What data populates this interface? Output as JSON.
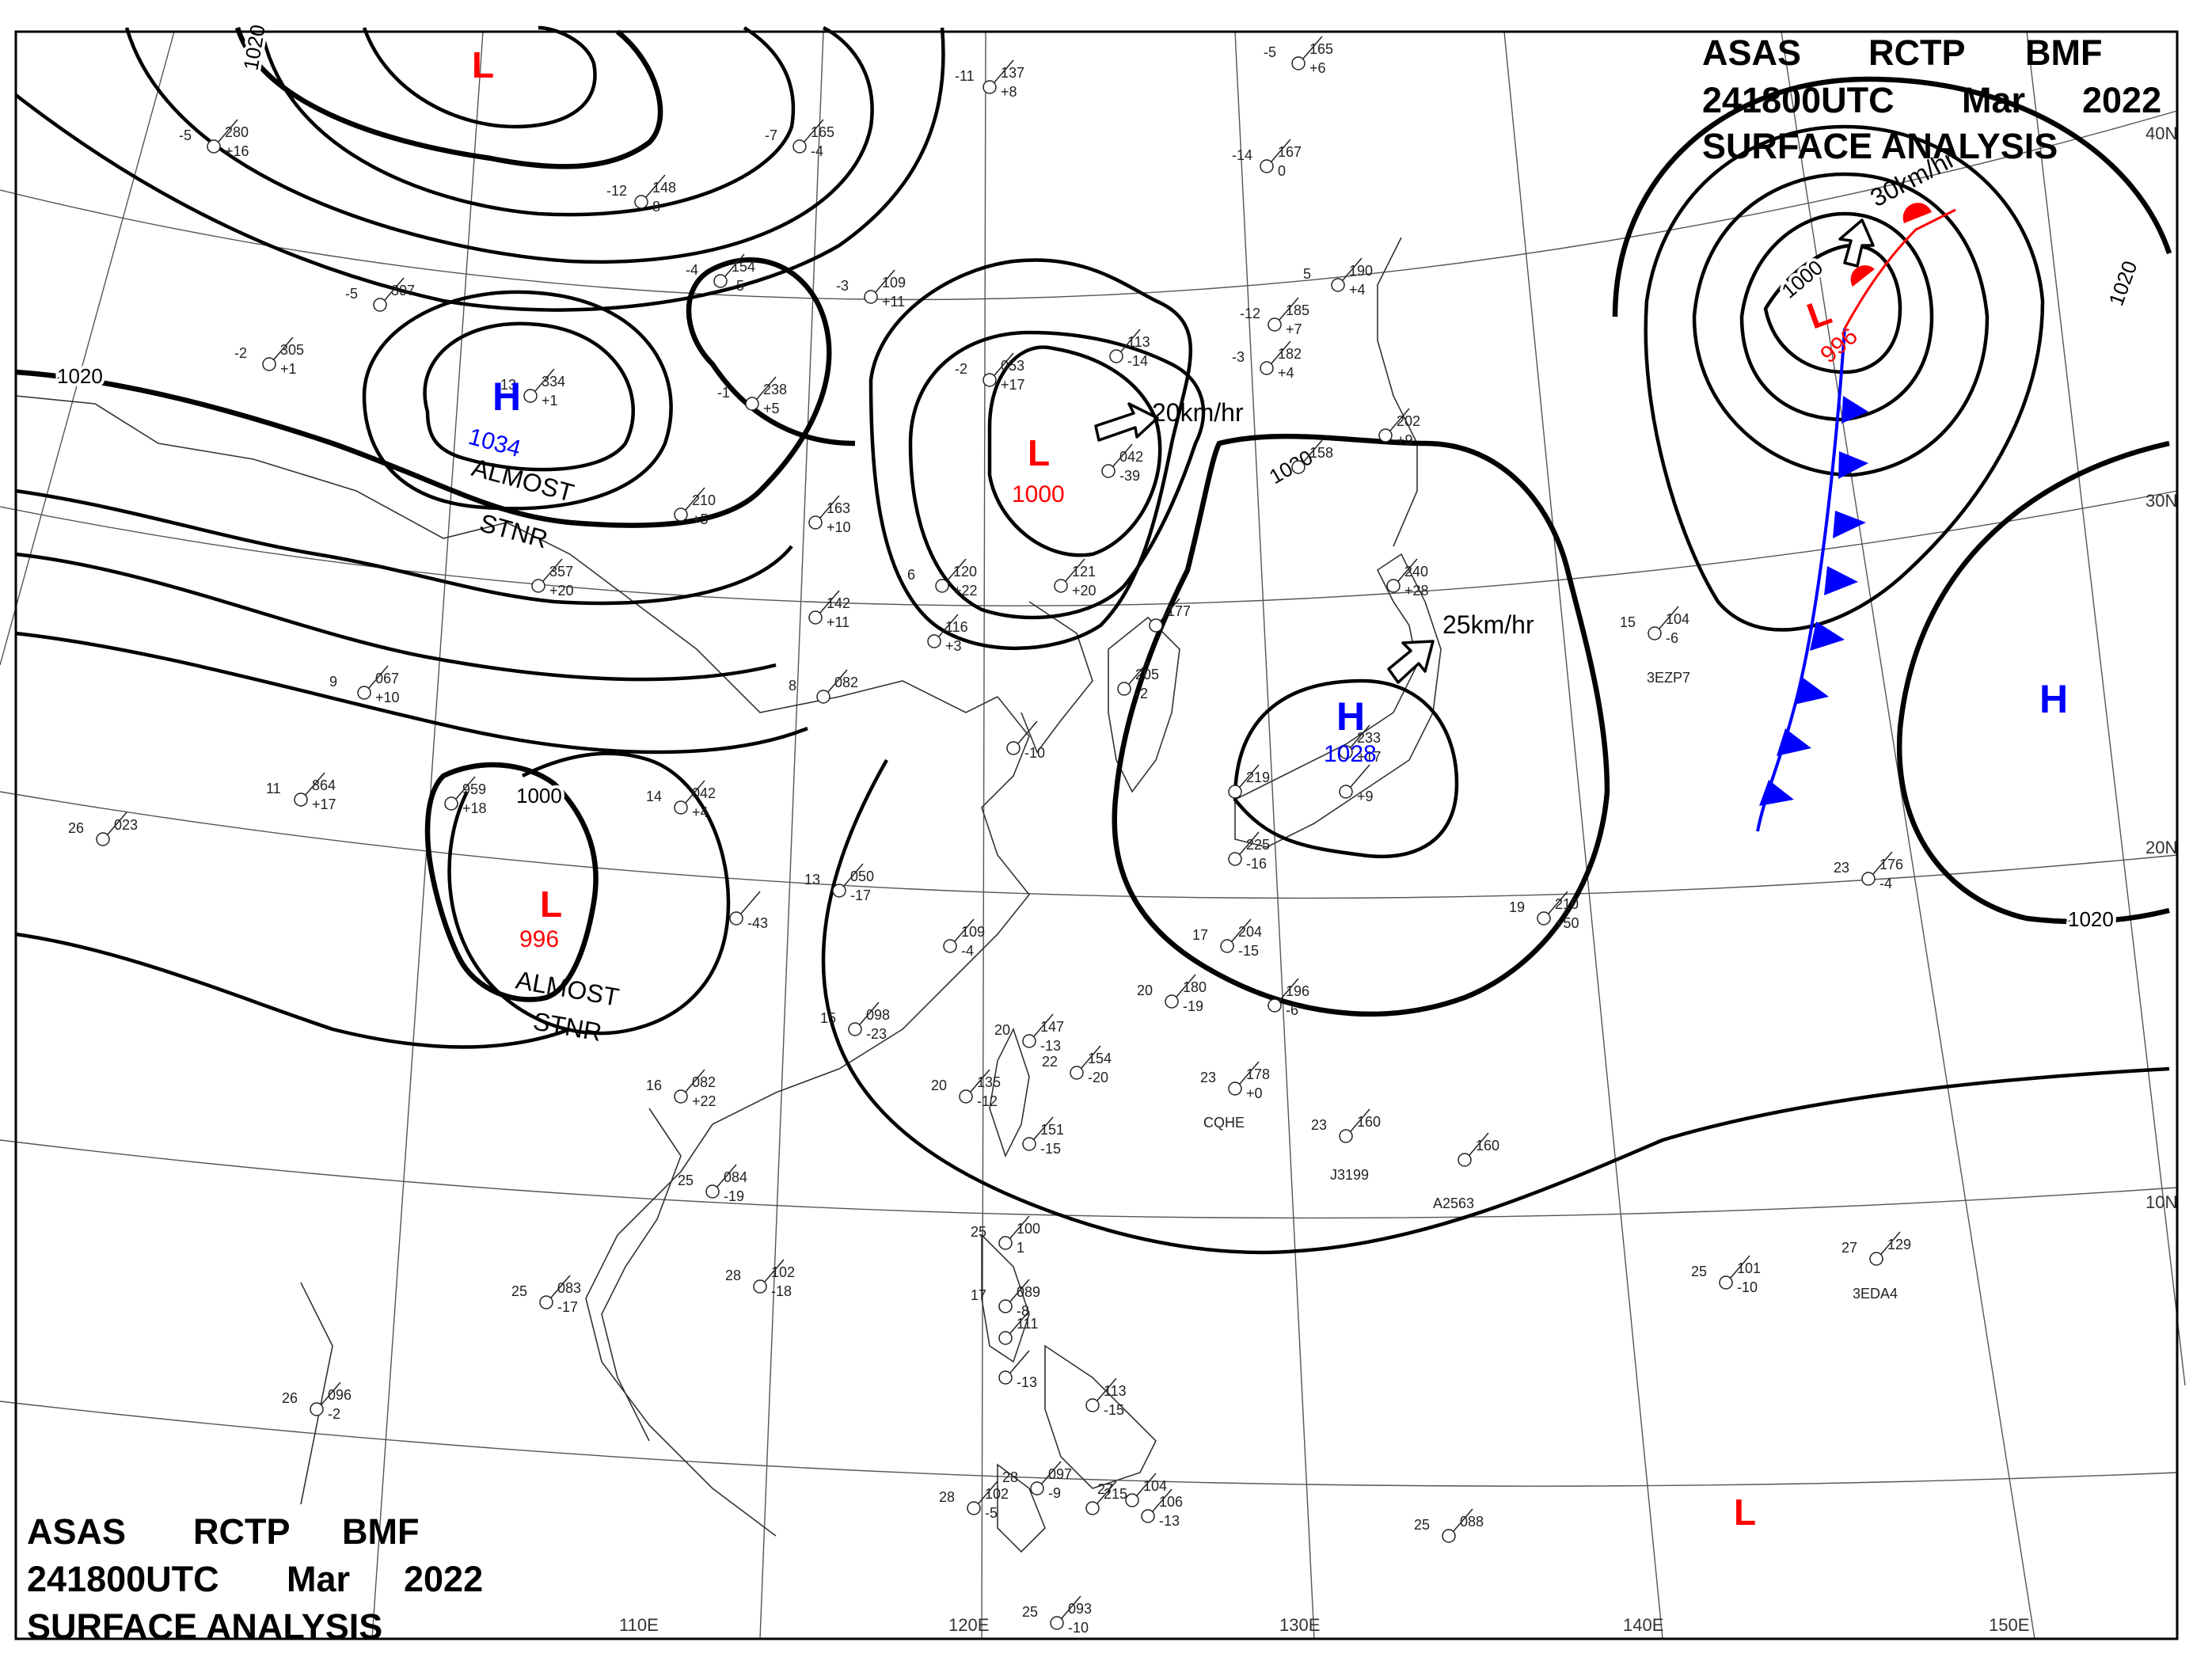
{
  "header_top": {
    "line1": [
      "ASAS",
      "RCTP",
      "BMF"
    ],
    "line2": [
      "241800UTC",
      "Mar",
      "2022"
    ],
    "line3": "SURFACE  ANALYSIS"
  },
  "header_bottom": {
    "line1": [
      "ASAS",
      "RCTP",
      "BMF"
    ],
    "line2": [
      "241800UTC",
      "Mar",
      "2022"
    ],
    "line3": "SURFACE  ANALYSIS"
  },
  "latitude_labels": [
    "40N",
    "30N",
    "20N",
    "10N"
  ],
  "longitude_labels": [
    "110E",
    "120E",
    "130E",
    "140E",
    "150E"
  ],
  "isobar_labels": [
    "1020",
    "1020",
    "1000",
    "1020",
    "1000",
    "1020",
    "1020"
  ],
  "pressure_centers": [
    {
      "symbol": "H",
      "value": "1034",
      "note": [
        "ALMOST",
        "STNR"
      ],
      "color": "#0000ff"
    },
    {
      "symbol": "L",
      "value": "1000",
      "note": [],
      "color": "#ff0000"
    },
    {
      "symbol": "L",
      "value": "996",
      "note": [
        "ALMOST",
        "STNR"
      ],
      "color": "#ff0000"
    },
    {
      "symbol": "H",
      "value": "1028",
      "note": [],
      "color": "#0000ff"
    },
    {
      "symbol": "L",
      "value": "996",
      "note": [],
      "color": "#ff0000"
    },
    {
      "symbol": "H",
      "value": "",
      "note": [],
      "color": "#0000ff"
    },
    {
      "symbol": "L",
      "value": "",
      "note": [],
      "color": "#ff0000"
    },
    {
      "symbol": "L",
      "value": "",
      "note": [],
      "color": "#ff0000"
    }
  ],
  "movement_labels": [
    "20km/hr",
    "25km/hr",
    "30km/hr"
  ],
  "fronts": [
    {
      "type": "cold",
      "color": "#0000ff"
    },
    {
      "type": "warm",
      "color": "#ff0000"
    }
  ],
  "stations": [
    {
      "t": "-11",
      "p": "137",
      "d": "+8"
    },
    {
      "t": "-5",
      "p": "165",
      "d": "+6"
    },
    {
      "t": "-5",
      "p": "280",
      "d": "+16"
    },
    {
      "t": "-7",
      "p": "165",
      "d": "-4"
    },
    {
      "t": "-14",
      "p": "167",
      "d": "0"
    },
    {
      "t": "-12",
      "p": "148",
      "d": "8"
    },
    {
      "t": "-4",
      "p": "154",
      "d": "-5"
    },
    {
      "t": "-3",
      "p": "109",
      "d": "+11"
    },
    {
      "t": "-5",
      "p": "307",
      "d": ""
    },
    {
      "t": "-12",
      "p": "185",
      "d": "+7"
    },
    {
      "t": "5",
      "p": "190",
      "d": "+4"
    },
    {
      "t": "-2",
      "p": "305",
      "d": "+1"
    },
    {
      "t": "-13",
      "p": "334",
      "d": "+1"
    },
    {
      "t": "-1",
      "p": "238",
      "d": "+5"
    },
    {
      "t": "-2",
      "p": "053",
      "d": "+17"
    },
    {
      "t": "",
      "p": "113",
      "d": "-14"
    },
    {
      "t": "-3",
      "p": "182",
      "d": "+4"
    },
    {
      "t": "",
      "p": "202",
      "d": "+9"
    },
    {
      "t": "",
      "p": "158",
      "d": ""
    },
    {
      "t": "",
      "p": "042",
      "d": "-39"
    },
    {
      "t": "",
      "p": "210",
      "d": "+5"
    },
    {
      "t": "",
      "p": "163",
      "d": "+10"
    },
    {
      "t": "",
      "p": "357",
      "d": "+20"
    },
    {
      "t": "",
      "p": "142",
      "d": "+11"
    },
    {
      "t": "6",
      "p": "120",
      "d": "+22"
    },
    {
      "t": "",
      "p": "121",
      "d": "+20"
    },
    {
      "t": "",
      "p": "116",
      "d": "+3"
    },
    {
      "t": "",
      "p": "177",
      "d": ""
    },
    {
      "t": "",
      "p": "240",
      "d": "+28"
    },
    {
      "t": "",
      "p": "205",
      "d": "-2"
    },
    {
      "t": "15",
      "p": "104",
      "d": "-6"
    },
    {
      "t": "9",
      "p": "067",
      "d": "+10"
    },
    {
      "t": "8",
      "p": "082",
      "d": ""
    },
    {
      "t": "",
      "p": "",
      "d": "-10"
    },
    {
      "t": "",
      "p": "233",
      "d": "+17"
    },
    {
      "t": "11",
      "p": "864",
      "d": "+17"
    },
    {
      "t": "",
      "p": "959",
      "d": "+18"
    },
    {
      "t": "14",
      "p": "042",
      "d": "+4"
    },
    {
      "t": "",
      "p": "219",
      "d": ""
    },
    {
      "t": "",
      "p": "",
      "d": "+9"
    },
    {
      "t": "26",
      "p": "023",
      "d": ""
    },
    {
      "t": "13",
      "p": "050",
      "d": "-17"
    },
    {
      "t": "",
      "p": "225",
      "d": "-16"
    },
    {
      "t": "",
      "p": "",
      "d": "-43"
    },
    {
      "t": "19",
      "p": "210",
      "d": "+50"
    },
    {
      "t": "23",
      "p": "176",
      "d": "-4"
    },
    {
      "t": "",
      "p": "109",
      "d": "-4"
    },
    {
      "t": "17",
      "p": "204",
      "d": "-15"
    },
    {
      "t": "15",
      "p": "098",
      "d": "-23"
    },
    {
      "t": "20",
      "p": "180",
      "d": "-19"
    },
    {
      "t": "",
      "p": "196",
      "d": "-6"
    },
    {
      "t": "20",
      "p": "147",
      "d": "-13"
    },
    {
      "t": "22",
      "p": "154",
      "d": "-20"
    },
    {
      "t": "23",
      "p": "178",
      "d": "+0"
    },
    {
      "t": "16",
      "p": "082",
      "d": "+22"
    },
    {
      "t": "20",
      "p": "135",
      "d": "-12"
    },
    {
      "t": "",
      "p": "151",
      "d": "-15"
    },
    {
      "t": "23",
      "p": "160",
      "d": ""
    },
    {
      "t": "",
      "p": "160",
      "d": ""
    },
    {
      "t": "25",
      "p": "084",
      "d": "-19"
    },
    {
      "t": "25",
      "p": "100",
      "d": "1"
    },
    {
      "t": "17",
      "p": "089",
      "d": "-8"
    },
    {
      "t": "",
      "p": "111",
      "d": ""
    },
    {
      "t": "",
      "p": "",
      "d": "-13"
    },
    {
      "t": "28",
      "p": "102",
      "d": "-18"
    },
    {
      "t": "25",
      "p": "083",
      "d": "-17"
    },
    {
      "t": "25",
      "p": "101",
      "d": "-10"
    },
    {
      "t": "27",
      "p": "129",
      "d": ""
    },
    {
      "t": "26",
      "p": "096",
      "d": "-2"
    },
    {
      "t": "",
      "p": "113",
      "d": "-15"
    },
    {
      "t": "28",
      "p": "097",
      "d": "-9"
    },
    {
      "t": "27",
      "p": "104",
      "d": ""
    },
    {
      "t": "",
      "p": "106",
      "d": "-13"
    },
    {
      "t": "28",
      "p": "102",
      "d": "-5"
    },
    {
      "t": "",
      "p": "215",
      "d": ""
    },
    {
      "t": "25",
      "p": "088",
      "d": ""
    },
    {
      "t": "25",
      "p": "093",
      "d": "-10"
    }
  ],
  "ship_labels": [
    "3EZP7",
    "CQHE",
    "J3199",
    "A2563",
    "3EDA4"
  ]
}
